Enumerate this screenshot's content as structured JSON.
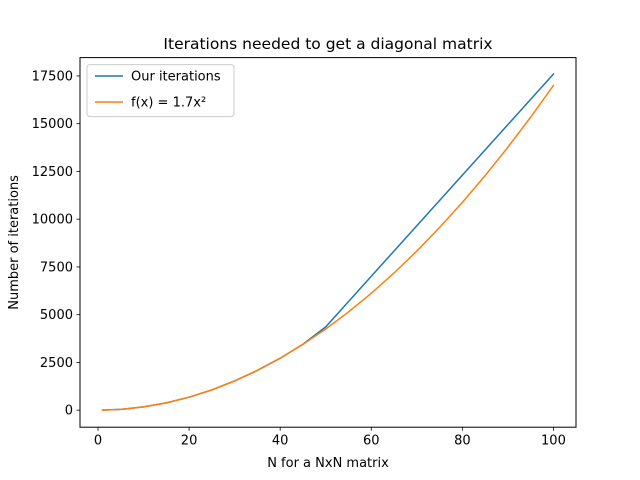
{
  "chart_data": {
    "type": "line",
    "title": "Iterations needed to get a diagonal matrix",
    "xlabel": "N for a NxN matrix",
    "ylabel": "Number of iterations",
    "xlim": [
      -3.95,
      104.95
    ],
    "ylim": [
      -892,
      18460
    ],
    "xticks": [
      0,
      20,
      40,
      60,
      80,
      100
    ],
    "yticks": [
      0,
      2500,
      5000,
      7500,
      10000,
      12500,
      15000,
      17500
    ],
    "grid": false,
    "legend_position": "top-left",
    "series": [
      {
        "name": "Our iterations",
        "color": "#1f77b4",
        "x": [
          1,
          5,
          10,
          15,
          20,
          25,
          30,
          35,
          40,
          45,
          50,
          100
        ],
        "y": [
          2,
          40,
          170,
          380,
          680,
          1060,
          1530,
          2080,
          2720,
          3450,
          4360,
          17600
        ]
      },
      {
        "name": "f(x) = 1.7x²",
        "color": "#ff7f0e",
        "x": [
          1,
          5,
          10,
          15,
          20,
          25,
          30,
          35,
          40,
          45,
          50,
          55,
          60,
          65,
          70,
          75,
          80,
          85,
          90,
          95,
          100
        ],
        "y": [
          1.7,
          42.5,
          170,
          382.5,
          680,
          1062.5,
          1530,
          2082.5,
          2720,
          3442.5,
          4250,
          5142.5,
          6120,
          7182.5,
          8330,
          9562.5,
          10880,
          12282.5,
          13770,
          15342.5,
          17000
        ]
      }
    ]
  }
}
